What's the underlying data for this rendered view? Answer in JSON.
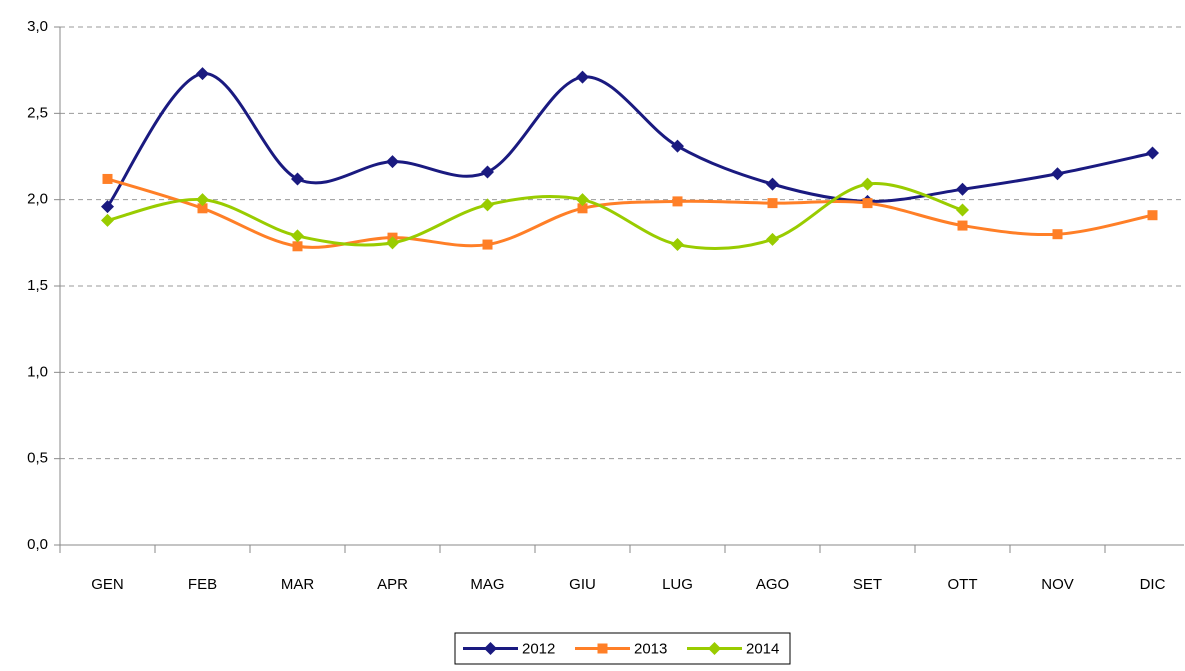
{
  "chart_data": {
    "type": "line",
    "categories": [
      "GEN",
      "FEB",
      "MAR",
      "APR",
      "MAG",
      "GIU",
      "LUG",
      "AGO",
      "SET",
      "OTT",
      "NOV",
      "DIC"
    ],
    "series": [
      {
        "name": "2012",
        "color": "#1a1a80",
        "marker": "diamond",
        "values": [
          1.96,
          2.73,
          2.12,
          2.22,
          2.16,
          2.71,
          2.31,
          2.09,
          1.99,
          2.06,
          2.15,
          2.27
        ]
      },
      {
        "name": "2013",
        "color": "#ff7f27",
        "marker": "square",
        "values": [
          2.12,
          1.95,
          1.73,
          1.78,
          1.74,
          1.95,
          1.99,
          1.98,
          1.98,
          1.85,
          1.8,
          1.91
        ]
      },
      {
        "name": "2014",
        "color": "#99cc00",
        "marker": "diamond",
        "values": [
          1.88,
          2.0,
          1.79,
          1.75,
          1.97,
          2.0,
          1.74,
          1.77,
          2.09,
          1.94,
          null,
          null
        ]
      }
    ],
    "ylim": [
      0,
      3
    ],
    "yticks": [
      {
        "value": 0,
        "label": "0,0"
      },
      {
        "value": 0.5,
        "label": "0,5"
      },
      {
        "value": 1,
        "label": "1,0"
      },
      {
        "value": 1.5,
        "label": "1,5"
      },
      {
        "value": 2,
        "label": "2,0"
      },
      {
        "value": 2.5,
        "label": "2,5"
      },
      {
        "value": 3,
        "label": "3,0"
      }
    ],
    "grid": true,
    "legend": "bottom"
  }
}
